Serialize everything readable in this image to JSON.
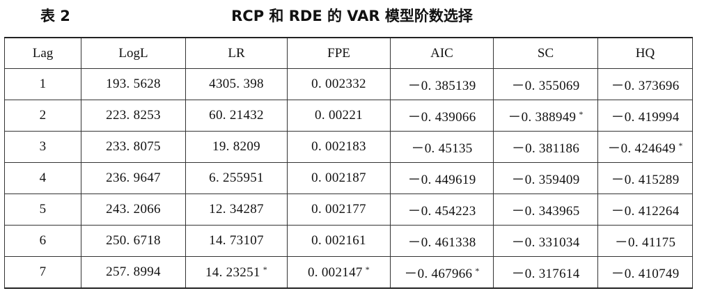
{
  "caption": {
    "label": "表 2",
    "title": "RCP 和 RDE 的 VAR 模型阶数选择"
  },
  "columns": [
    "Lag",
    "LogL",
    "LR",
    "FPE",
    "AIC",
    "SC",
    "HQ"
  ],
  "rows": [
    [
      {
        "v": "1"
      },
      {
        "v": "193. 5628"
      },
      {
        "v": "4305. 398"
      },
      {
        "v": "0. 002332"
      },
      {
        "v": "－0. 385139"
      },
      {
        "v": "－0. 355069"
      },
      {
        "v": "－0. 373696"
      }
    ],
    [
      {
        "v": "2"
      },
      {
        "v": "223. 8253"
      },
      {
        "v": "60. 21432"
      },
      {
        "v": "0. 00221"
      },
      {
        "v": "－0. 439066"
      },
      {
        "v": "－0. 388949",
        "mark": "*"
      },
      {
        "v": "－0. 419994"
      }
    ],
    [
      {
        "v": "3"
      },
      {
        "v": "233. 8075"
      },
      {
        "v": "19. 8209"
      },
      {
        "v": "0. 002183"
      },
      {
        "v": "－0. 45135"
      },
      {
        "v": "－0. 381186"
      },
      {
        "v": "－0. 424649",
        "mark": "*"
      }
    ],
    [
      {
        "v": "4"
      },
      {
        "v": "236. 9647"
      },
      {
        "v": "6. 255951"
      },
      {
        "v": "0. 002187"
      },
      {
        "v": "－0. 449619"
      },
      {
        "v": "－0. 359409"
      },
      {
        "v": "－0. 415289"
      }
    ],
    [
      {
        "v": "5"
      },
      {
        "v": "243. 2066"
      },
      {
        "v": "12. 34287"
      },
      {
        "v": "0. 002177"
      },
      {
        "v": "－0. 454223"
      },
      {
        "v": "－0. 343965"
      },
      {
        "v": "－0. 412264"
      }
    ],
    [
      {
        "v": "6"
      },
      {
        "v": "250. 6718"
      },
      {
        "v": "14. 73107"
      },
      {
        "v": "0. 002161"
      },
      {
        "v": "－0. 461338"
      },
      {
        "v": "－0. 331034"
      },
      {
        "v": "－0. 41175"
      }
    ],
    [
      {
        "v": "7"
      },
      {
        "v": "257. 8994"
      },
      {
        "v": "14. 23251",
        "mark": "*"
      },
      {
        "v": "0. 002147",
        "mark": "*"
      },
      {
        "v": "－0. 467966",
        "mark": "*"
      },
      {
        "v": "－0. 317614"
      },
      {
        "v": "－0. 410749"
      }
    ]
  ]
}
